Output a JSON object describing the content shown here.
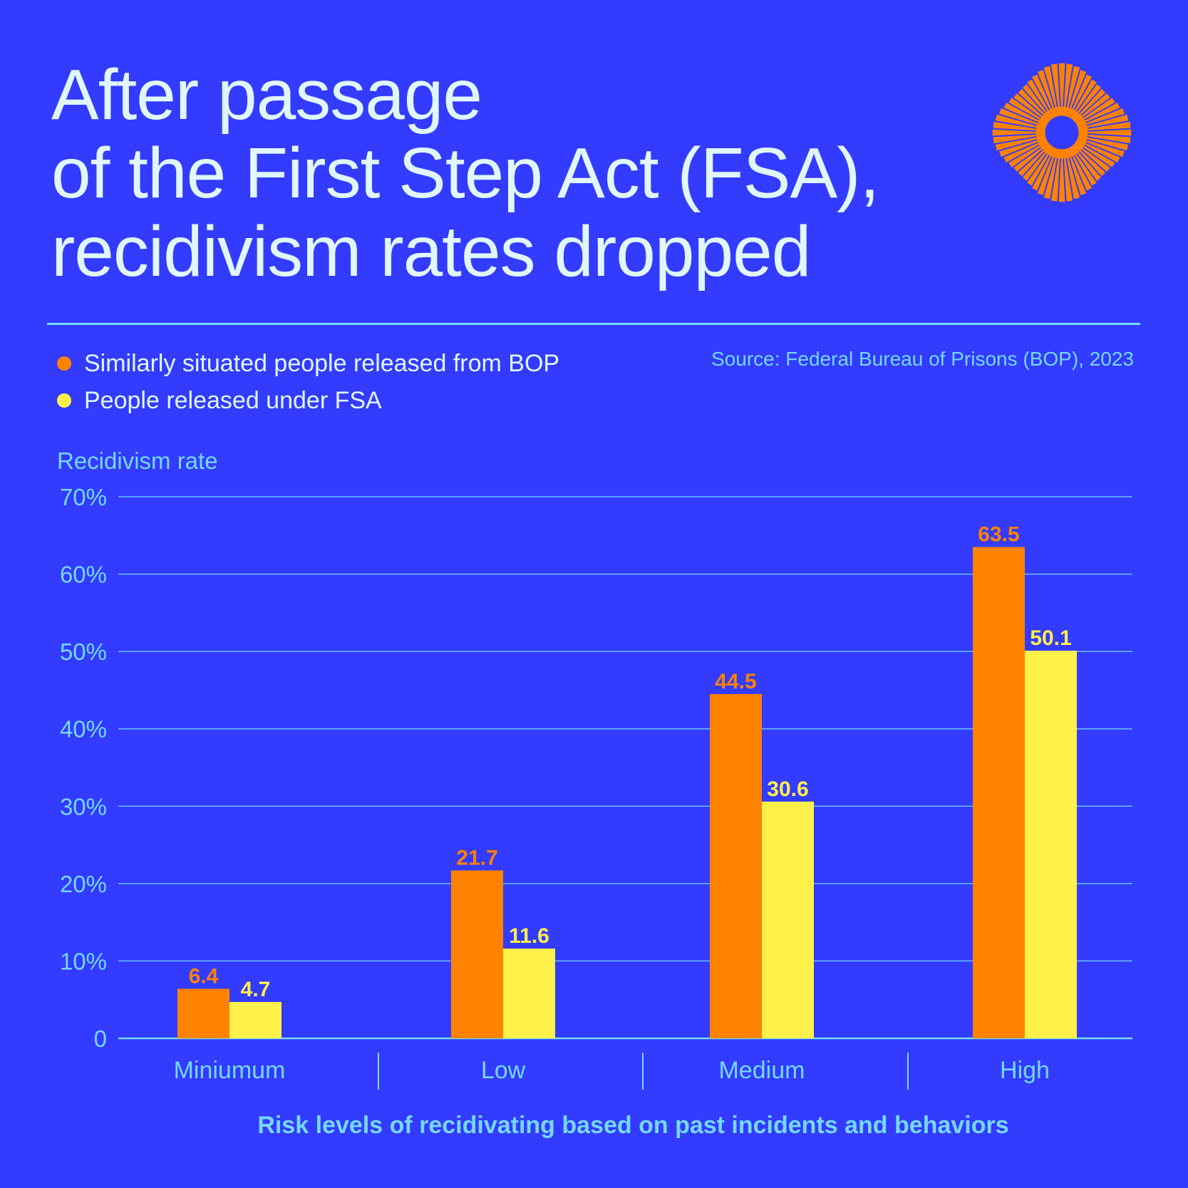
{
  "title": {
    "lines": [
      "After passage",
      "of the First Step Act (FSA),",
      "recidivism rates dropped"
    ]
  },
  "logo": {
    "icon": "sunburst-logo-icon",
    "color": "#FF8200"
  },
  "source": "Source: Federal Bureau of Prisons (BOP), 2023",
  "colors": {
    "background": "#333BFF",
    "text_light": "#E0F7FF",
    "accent_cyan": "#74D8FF",
    "series_bop": "#FF8200",
    "series_fsa": "#FFF04A"
  },
  "chart_data": {
    "type": "bar",
    "title": "After passage of the First Step Act (FSA), recidivism rates dropped",
    "ylabel": "Recidivism rate",
    "xlabel": "Risk levels of recidivating based on past incidents and behaviors",
    "categories": [
      "Miniumum",
      "Low",
      "Medium",
      "High"
    ],
    "series": [
      {
        "name": "Similarly situated people released from BOP",
        "color": "#FF8200",
        "values": [
          6.4,
          21.7,
          44.5,
          63.5
        ]
      },
      {
        "name": "People released under FSA",
        "color": "#FFF04A",
        "values": [
          4.7,
          11.6,
          30.6,
          50.1
        ]
      }
    ],
    "yticks": [
      0,
      10,
      20,
      30,
      40,
      50,
      60,
      70
    ],
    "ytick_labels": [
      "0",
      "10%",
      "20%",
      "30%",
      "40%",
      "50%",
      "60%",
      "70%"
    ],
    "ylim": [
      0,
      70
    ],
    "grid": true,
    "legend": "top-left",
    "data_labels": true
  }
}
